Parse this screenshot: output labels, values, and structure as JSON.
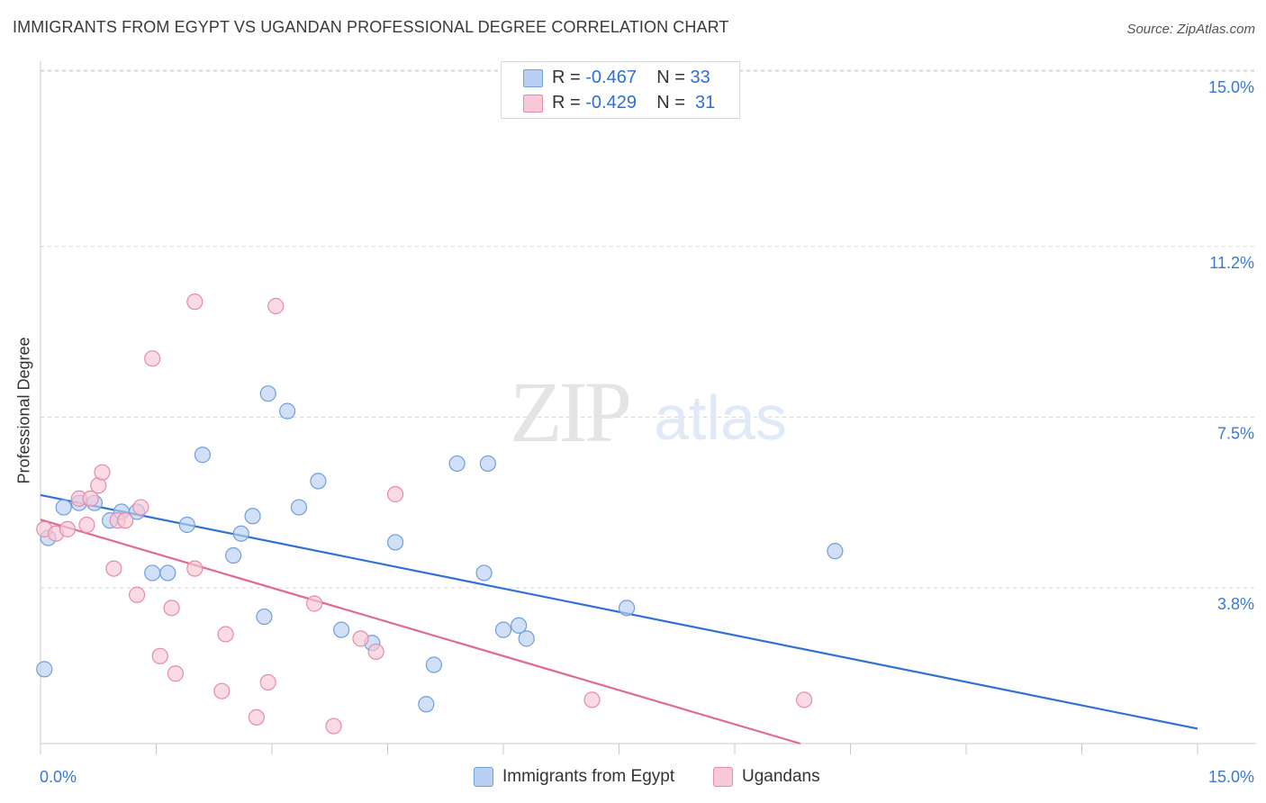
{
  "title": "IMMIGRANTS FROM EGYPT VS UGANDAN PROFESSIONAL DEGREE CORRELATION CHART",
  "source": "Source: ZipAtlas.com",
  "watermark": {
    "zip": "ZIP",
    "atlas": "atlas"
  },
  "legend": {
    "r_label": "R =",
    "n_label": "N =",
    "rows": [
      {
        "r": "-0.467",
        "n": "33"
      },
      {
        "r": "-0.429",
        "n": "31"
      }
    ]
  },
  "colors": {
    "egypt_fill": "#b9d0f3",
    "egypt_stroke": "#6e9fde",
    "egypt_line": "#2f72d4",
    "ugandan_fill": "#f8c8d6",
    "ugandan_stroke": "#e88aa7",
    "ugandan_line": "#e06a92",
    "axis_text": "#3a78d4",
    "grid": "#d5d5d5"
  },
  "chart_data": {
    "type": "scatter",
    "title": "IMMIGRANTS FROM EGYPT VS UGANDAN PROFESSIONAL DEGREE CORRELATION CHART",
    "xlabel": "",
    "ylabel": "Professional Degree",
    "xlim": [
      0,
      15
    ],
    "ylim": [
      0,
      15
    ],
    "x_tick_labels": [
      "0.0%",
      "15.0%"
    ],
    "y_ticks": [
      3.8,
      7.5,
      11.2,
      15.0
    ],
    "y_tick_labels": [
      "3.8%",
      "7.5%",
      "11.2%",
      "15.0%"
    ],
    "grid": "horizontal dashed",
    "legend_position": "top-center",
    "series": [
      {
        "name": "Immigrants from Egypt",
        "x": [
          0.1,
          0.3,
          0.5,
          0.7,
          0.9,
          1.05,
          1.25,
          1.45,
          1.65,
          1.9,
          2.1,
          2.5,
          2.75,
          2.95,
          2.6,
          2.9,
          3.2,
          3.35,
          3.6,
          3.9,
          4.3,
          4.6,
          5.0,
          5.1,
          5.4,
          5.75,
          5.8,
          6.0,
          6.3,
          6.2,
          7.6,
          10.3,
          0.05
        ],
        "y": [
          4.7,
          5.4,
          5.5,
          5.5,
          5.1,
          5.3,
          5.3,
          3.9,
          3.9,
          5.0,
          6.6,
          4.3,
          5.2,
          8.0,
          4.8,
          2.9,
          7.6,
          5.4,
          6.0,
          2.6,
          2.3,
          4.6,
          0.9,
          1.8,
          6.4,
          3.9,
          6.4,
          2.6,
          2.4,
          2.7,
          3.1,
          4.4,
          1.7
        ],
        "note_order": "approximate reading of marker positions"
      },
      {
        "name": "Ugandans",
        "x": [
          0.05,
          0.2,
          0.35,
          0.5,
          0.65,
          0.75,
          0.8,
          0.95,
          1.0,
          1.1,
          1.25,
          1.3,
          1.45,
          1.55,
          1.7,
          1.75,
          2.0,
          2.35,
          2.4,
          2.8,
          2.95,
          3.05,
          3.55,
          3.8,
          4.15,
          4.35,
          4.6,
          7.15,
          9.9,
          0.6,
          2.0
        ],
        "y": [
          4.9,
          4.8,
          4.9,
          5.6,
          5.6,
          5.9,
          6.2,
          4.0,
          5.1,
          5.1,
          3.4,
          5.4,
          8.8,
          2.0,
          3.1,
          1.6,
          10.1,
          1.2,
          2.5,
          0.6,
          1.4,
          10.0,
          3.2,
          0.4,
          2.4,
          2.1,
          5.7,
          1.0,
          1.0,
          5.0,
          4.0
        ]
      }
    ],
    "trend_lines": [
      {
        "name": "Immigrants from Egypt",
        "x": [
          0,
          15
        ],
        "y": [
          5.68,
          0.34
        ]
      },
      {
        "name": "Ugandans",
        "x": [
          0,
          9.85
        ],
        "y": [
          5.12,
          0.0
        ]
      }
    ]
  }
}
